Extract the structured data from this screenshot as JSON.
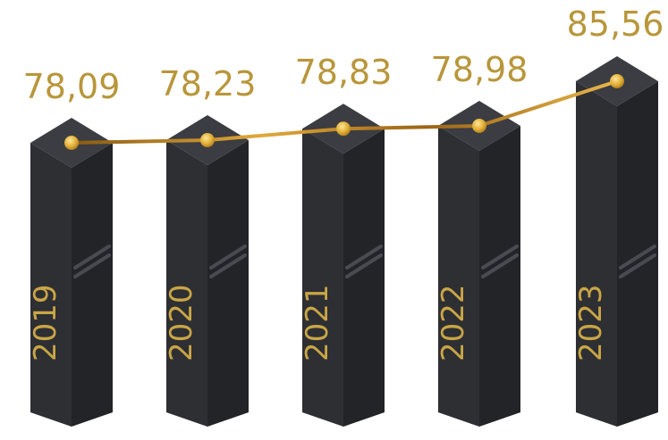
{
  "chart_data": {
    "type": "bar",
    "categories": [
      "2019",
      "2020",
      "2021",
      "2022",
      "2023"
    ],
    "values": [
      78.09,
      78.23,
      78.83,
      78.98,
      85.56
    ],
    "data_labels": [
      "78,09",
      "78,23",
      "78,83",
      "78,98",
      "85,56"
    ],
    "title": "",
    "xlabel": "",
    "ylabel": "",
    "overlay": "line",
    "grid": false,
    "legend": "none",
    "colors": {
      "bar_front": "#2E2F33",
      "bar_side": "#232427",
      "bar_top": "#3C3D42",
      "line": "#C88A1E",
      "marker": "#E7B93E",
      "value_text": "#B8963A",
      "year_text": "#C9A646"
    }
  }
}
